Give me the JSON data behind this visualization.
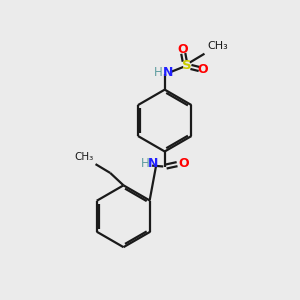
{
  "background_color": "#ebebeb",
  "bond_color": "#1a1a1a",
  "N_color": "#2020ff",
  "NH_color": "#5f9ea0",
  "O_color": "#ff0000",
  "S_color": "#cccc00",
  "C_color": "#1a1a1a",
  "lw": 1.6,
  "fs": 8.5,
  "xlim": [
    0,
    10
  ],
  "ylim": [
    0,
    10
  ]
}
